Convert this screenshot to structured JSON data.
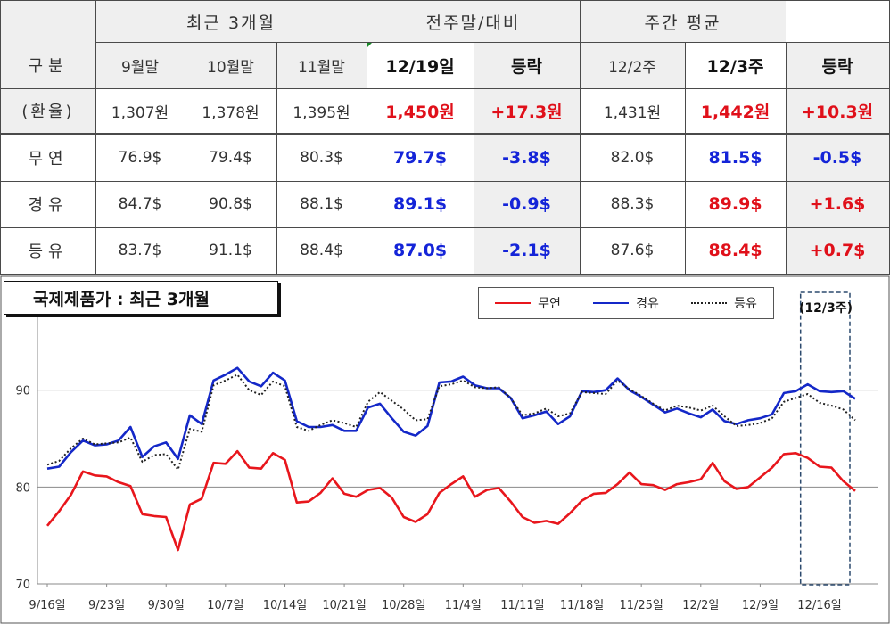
{
  "table": {
    "groups": {
      "recent3": "최근 3개월",
      "prev_week": "전주말/대비",
      "weekly_avg": "주간 평균"
    },
    "col_headers": [
      "구분",
      "9월말",
      "10월말",
      "11월말",
      "12/19일",
      "등락",
      "12/2주",
      "12/3주",
      "등락"
    ],
    "rows": [
      {
        "label": "(환율)",
        "cells": [
          "1,307원",
          "1,378원",
          "1,395원",
          "1,450원",
          "+17.3원",
          "1,431원",
          "1,442원",
          "+10.3원"
        ]
      },
      {
        "label": "무연",
        "cells": [
          "76.9$",
          "79.4$",
          "80.3$",
          "79.7$",
          "-3.8$",
          "82.0$",
          "81.5$",
          "-0.5$"
        ]
      },
      {
        "label": "경유",
        "cells": [
          "84.7$",
          "90.8$",
          "88.1$",
          "89.1$",
          "-0.9$",
          "88.3$",
          "89.9$",
          "+1.6$"
        ]
      },
      {
        "label": "등유",
        "cells": [
          "83.7$",
          "91.1$",
          "88.4$",
          "87.0$",
          "-2.1$",
          "87.6$",
          "88.4$",
          "+0.7$"
        ]
      }
    ],
    "colors": {
      "up": "#e0101a",
      "down": "#1424d8"
    }
  },
  "chart_data": {
    "type": "line",
    "title": "국제제품가 : 최근 3개월",
    "highlight_label": "(12/3주)",
    "x_tick_labels": [
      "9/16일",
      "9/23일",
      "9/30일",
      "10/7일",
      "10/14일",
      "10/21일",
      "10/28일",
      "11/4일",
      "11/11일",
      "11/18일",
      "11/25일",
      "12/2일",
      "12/9일",
      "12/16일"
    ],
    "y_ticks": [
      70,
      80,
      90
    ],
    "ylim": [
      70,
      100
    ],
    "grid": true,
    "legend_placement": "top-right",
    "series": [
      {
        "name": "무연",
        "color": "#e8161c",
        "style": "solid",
        "values": [
          76.0,
          77.5,
          79.2,
          81.6,
          81.2,
          81.1,
          80.5,
          80.1,
          77.2,
          77.0,
          76.9,
          73.5,
          78.2,
          78.8,
          82.5,
          82.4,
          83.7,
          82.0,
          81.9,
          83.5,
          82.8,
          78.4,
          78.5,
          79.4,
          80.9,
          79.3,
          79.0,
          79.7,
          79.9,
          78.9,
          76.9,
          76.4,
          77.2,
          79.4,
          80.3,
          81.1,
          79.0,
          79.7,
          79.9,
          78.5,
          76.9,
          76.3,
          76.5,
          76.2,
          77.3,
          78.6,
          79.3,
          79.4,
          80.3,
          81.5,
          80.3,
          80.2,
          79.7,
          80.3,
          80.5,
          80.8,
          82.5,
          80.6,
          79.8,
          80.0,
          81.0,
          82.0,
          83.4,
          83.5,
          83.0,
          82.1,
          82.0,
          80.6,
          79.6
        ]
      },
      {
        "name": "경유",
        "color": "#1428c8",
        "style": "solid",
        "values": [
          81.9,
          82.1,
          83.6,
          84.8,
          84.3,
          84.4,
          84.8,
          86.2,
          83.1,
          84.2,
          84.6,
          82.9,
          87.4,
          86.5,
          91.0,
          91.6,
          92.3,
          90.9,
          90.4,
          91.8,
          91.0,
          86.8,
          86.2,
          86.2,
          86.4,
          85.8,
          85.8,
          88.2,
          88.6,
          87.1,
          85.7,
          85.3,
          86.3,
          90.8,
          90.9,
          91.4,
          90.5,
          90.2,
          90.2,
          89.2,
          87.1,
          87.4,
          87.8,
          86.5,
          87.3,
          89.9,
          89.8,
          90.0,
          91.2,
          90.0,
          89.3,
          88.5,
          87.7,
          88.1,
          87.6,
          87.2,
          88.0,
          86.8,
          86.5,
          86.9,
          87.1,
          87.5,
          89.7,
          89.9,
          90.6,
          89.9,
          89.8,
          89.9,
          89.1
        ]
      },
      {
        "name": "등유",
        "color": "#222222",
        "style": "dotted",
        "values": [
          82.3,
          82.7,
          84.0,
          85.0,
          84.4,
          84.5,
          84.6,
          85.1,
          82.6,
          83.3,
          83.4,
          81.8,
          86.0,
          85.7,
          90.5,
          91.0,
          91.6,
          90.0,
          89.5,
          90.9,
          90.4,
          86.2,
          85.8,
          86.4,
          86.9,
          86.6,
          86.2,
          88.8,
          89.8,
          88.9,
          88.0,
          86.9,
          87.0,
          90.4,
          90.6,
          91.0,
          90.3,
          90.2,
          90.3,
          89.2,
          87.4,
          87.6,
          88.1,
          87.3,
          87.6,
          89.8,
          89.7,
          89.6,
          91.0,
          90.1,
          89.4,
          88.6,
          87.9,
          88.4,
          88.2,
          87.9,
          88.4,
          87.3,
          86.3,
          86.4,
          86.6,
          87.1,
          88.8,
          89.2,
          89.6,
          88.7,
          88.4,
          88.0,
          86.9
        ]
      }
    ]
  }
}
